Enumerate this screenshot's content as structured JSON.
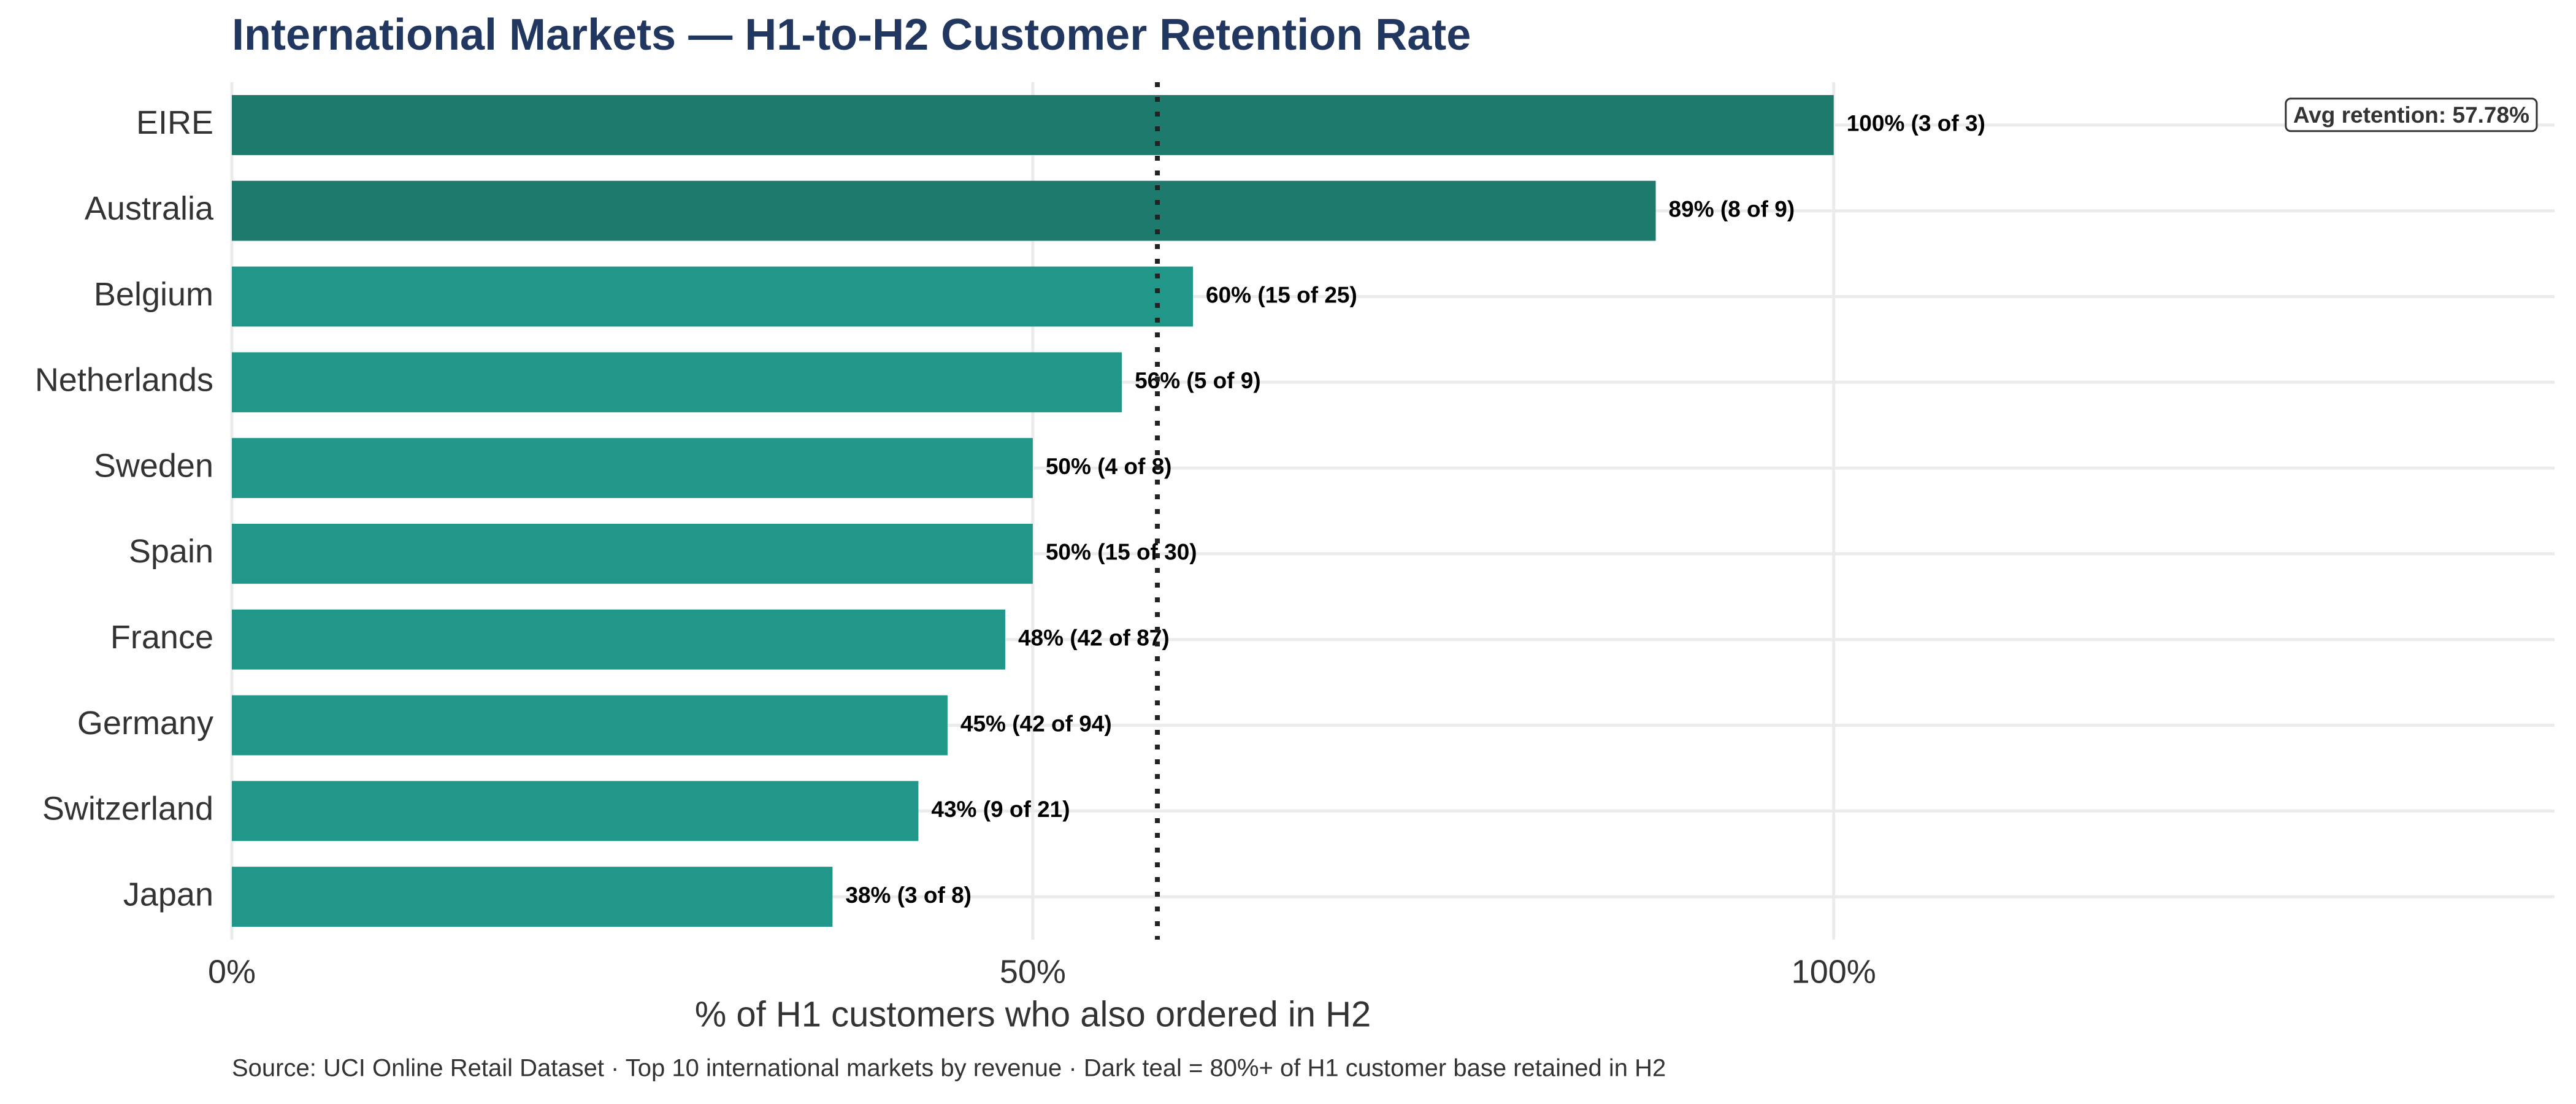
{
  "chart_data": {
    "type": "bar",
    "orientation": "horizontal",
    "title": "International Markets — H1-to-H2 Customer Retention Rate",
    "x_label": "% of H1 customers who also ordered in H2",
    "source": "Source: UCI Online Retail Dataset · Top 10 international markets by revenue · Dark teal = 80%+ of H1 customer base retained in H2",
    "categories": [
      "EIRE",
      "Australia",
      "Belgium",
      "Netherlands",
      "Sweden",
      "Spain",
      "France",
      "Germany",
      "Switzerland",
      "Japan"
    ],
    "values": [
      100,
      88.89,
      60,
      55.56,
      50,
      50,
      48.28,
      44.68,
      42.86,
      37.5
    ],
    "value_labels": [
      "100% (3 of 3)",
      "89% (8 of 9)",
      "60% (15 of 25)",
      "56% (5 of 9)",
      "50% (4 of 8)",
      "50% (15 of 30)",
      "48% (42 of 87)",
      "45% (42 of 94)",
      "43% (9 of 21)",
      "38% (3 of 8)"
    ],
    "colors": [
      "#1f7a6e",
      "#1f7a6e",
      "#21978a",
      "#21978a",
      "#21978a",
      "#21978a",
      "#21978a",
      "#21978a",
      "#21978a",
      "#21978a"
    ],
    "xlim": [
      0,
      145
    ],
    "xticks": [
      {
        "value": 0,
        "label": "0%"
      },
      {
        "value": 50,
        "label": "50%"
      },
      {
        "value": 100,
        "label": "100%"
      }
    ],
    "grid": true,
    "average": {
      "value": 57.78,
      "label": "Avg retention: 57.78%"
    }
  }
}
